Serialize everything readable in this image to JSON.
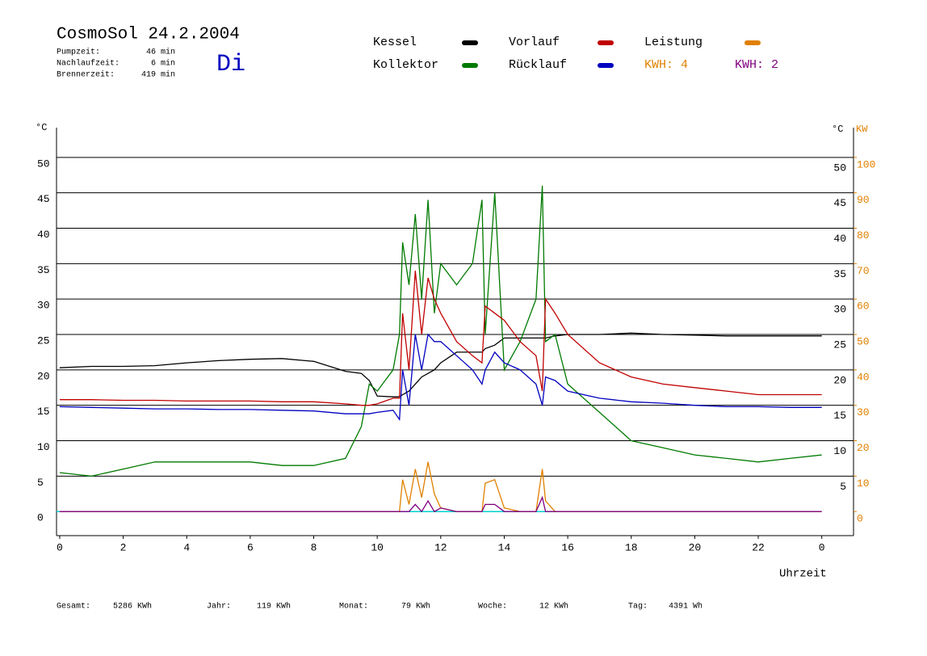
{
  "header": {
    "title": "CosmoSol 24.2.2004",
    "day": "Di",
    "stats": [
      {
        "label": "Pumpzeit:",
        "value": "46 min"
      },
      {
        "label": "Nachlaufzeit:",
        "value": "6 min"
      },
      {
        "label": "Brennerzeit:",
        "value": "419 min"
      }
    ]
  },
  "footer": [
    {
      "label": "Gesamt:",
      "value": "5286 KWh"
    },
    {
      "label": "Jahr:",
      "value": "119 KWh"
    },
    {
      "label": "Monat:",
      "value": "79 KWh"
    },
    {
      "label": "Woche:",
      "value": "12 KWh"
    },
    {
      "label": "Tag:",
      "value": "4391 Wh"
    }
  ],
  "chart_data": {
    "type": "line",
    "x_label": "Uhrzeit",
    "y_label": "°C",
    "y2_label_left": "°C",
    "y2_label": "KW",
    "annotation": "KWH: 4",
    "x": [
      0,
      1,
      2,
      3,
      4,
      5,
      6,
      7,
      8,
      9,
      9.5,
      9.75,
      10,
      10.5,
      10.7,
      10.8,
      11,
      11.2,
      11.4,
      11.6,
      11.8,
      12,
      12.5,
      13,
      13.3,
      13.4,
      13.7,
      14,
      14.5,
      15,
      15.2,
      15.3,
      15.6,
      16,
      17,
      18,
      19,
      20,
      21,
      22,
      23,
      24
    ],
    "xlim": [
      -0.1,
      25
    ],
    "xticks": [
      0,
      2,
      4,
      6,
      8,
      10,
      12,
      14,
      16,
      18,
      20,
      22,
      {
        "value": 24,
        "label": "0"
      }
    ],
    "ylim": [
      -3.4,
      54.2
    ],
    "yticks": [
      0,
      5,
      10,
      15,
      20,
      25,
      30,
      35,
      40,
      45,
      50
    ],
    "y2lim": [
      -6.8,
      108.4
    ],
    "y2ticks": [
      0,
      10,
      20,
      30,
      40,
      50,
      60,
      70,
      80,
      90,
      100
    ],
    "grid": true,
    "series": [
      {
        "name": "Kessel",
        "color": "#000000",
        "values": [
          20.3,
          20.5,
          20.5,
          20.6,
          21,
          21.3,
          21.5,
          21.6,
          21.2,
          19.8,
          19.5,
          18.5,
          16.3,
          16.2,
          16.2,
          16.5,
          17,
          18,
          19,
          19.5,
          20,
          21,
          22.5,
          22.5,
          22.5,
          23,
          23.5,
          24.5,
          24.5,
          24.5,
          24.5,
          24.5,
          24.8,
          25,
          25,
          25.2,
          25,
          24.9,
          24.8,
          24.8,
          24.8,
          24.8
        ]
      },
      {
        "name": "Kollektor",
        "color": "#007a00",
        "values": [
          5.5,
          5,
          6,
          7,
          7,
          7,
          7,
          6.5,
          6.5,
          7.5,
          12,
          18,
          17,
          20,
          25,
          38,
          32,
          42,
          30,
          44,
          28,
          35,
          32,
          35,
          44,
          25,
          45,
          20,
          24,
          30,
          46,
          24,
          25,
          18,
          14,
          10,
          9,
          8,
          7.5,
          7,
          7.5,
          8
        ]
      },
      {
        "name": "Vorlauf",
        "color": "#c00000",
        "values": [
          15.8,
          15.8,
          15.7,
          15.7,
          15.6,
          15.6,
          15.6,
          15.5,
          15.5,
          15.2,
          15,
          15,
          15.2,
          16,
          16,
          28,
          20,
          34,
          25,
          33,
          30,
          28,
          24,
          22,
          21,
          29,
          28,
          27,
          24,
          22,
          17,
          30,
          28,
          25,
          21,
          19,
          18,
          17.5,
          17,
          16.5,
          16.5,
          16.5
        ]
      },
      {
        "name": "Rücklauf",
        "color": "#0000c0",
        "values": [
          14.8,
          14.7,
          14.6,
          14.5,
          14.5,
          14.4,
          14.4,
          14.3,
          14.2,
          13.8,
          13.8,
          13.8,
          14,
          14.3,
          13,
          20,
          15,
          25,
          20,
          25,
          24,
          24,
          22,
          20,
          18,
          20,
          22.5,
          21,
          20,
          18,
          15,
          19,
          18.5,
          17,
          16,
          15.5,
          15.3,
          15,
          14.8,
          14.8,
          14.7,
          14.7
        ]
      },
      {
        "name": "Leistung",
        "color": "#e08000",
        "axis": "y2",
        "values": [
          0,
          0,
          0,
          0,
          0,
          0,
          0,
          0,
          0,
          0,
          0,
          0,
          0,
          0,
          0,
          9,
          2,
          12,
          4,
          14,
          5,
          1,
          0,
          0,
          0,
          8,
          9,
          1,
          0,
          0,
          12,
          3,
          0,
          0,
          0,
          0,
          0,
          0,
          0,
          0,
          0,
          0
        ]
      },
      {
        "name": "KWH: 2",
        "color": "#800080",
        "axis": "y2",
        "values": [
          0,
          0,
          0,
          0,
          0,
          0,
          0,
          0,
          0,
          0,
          0,
          0,
          0,
          0,
          0,
          0,
          0,
          2,
          0,
          3,
          0,
          1,
          0,
          0,
          0,
          2,
          2,
          0,
          0,
          0,
          4,
          0,
          0,
          0,
          0,
          0,
          0,
          0,
          0,
          0,
          0,
          0
        ]
      }
    ]
  }
}
